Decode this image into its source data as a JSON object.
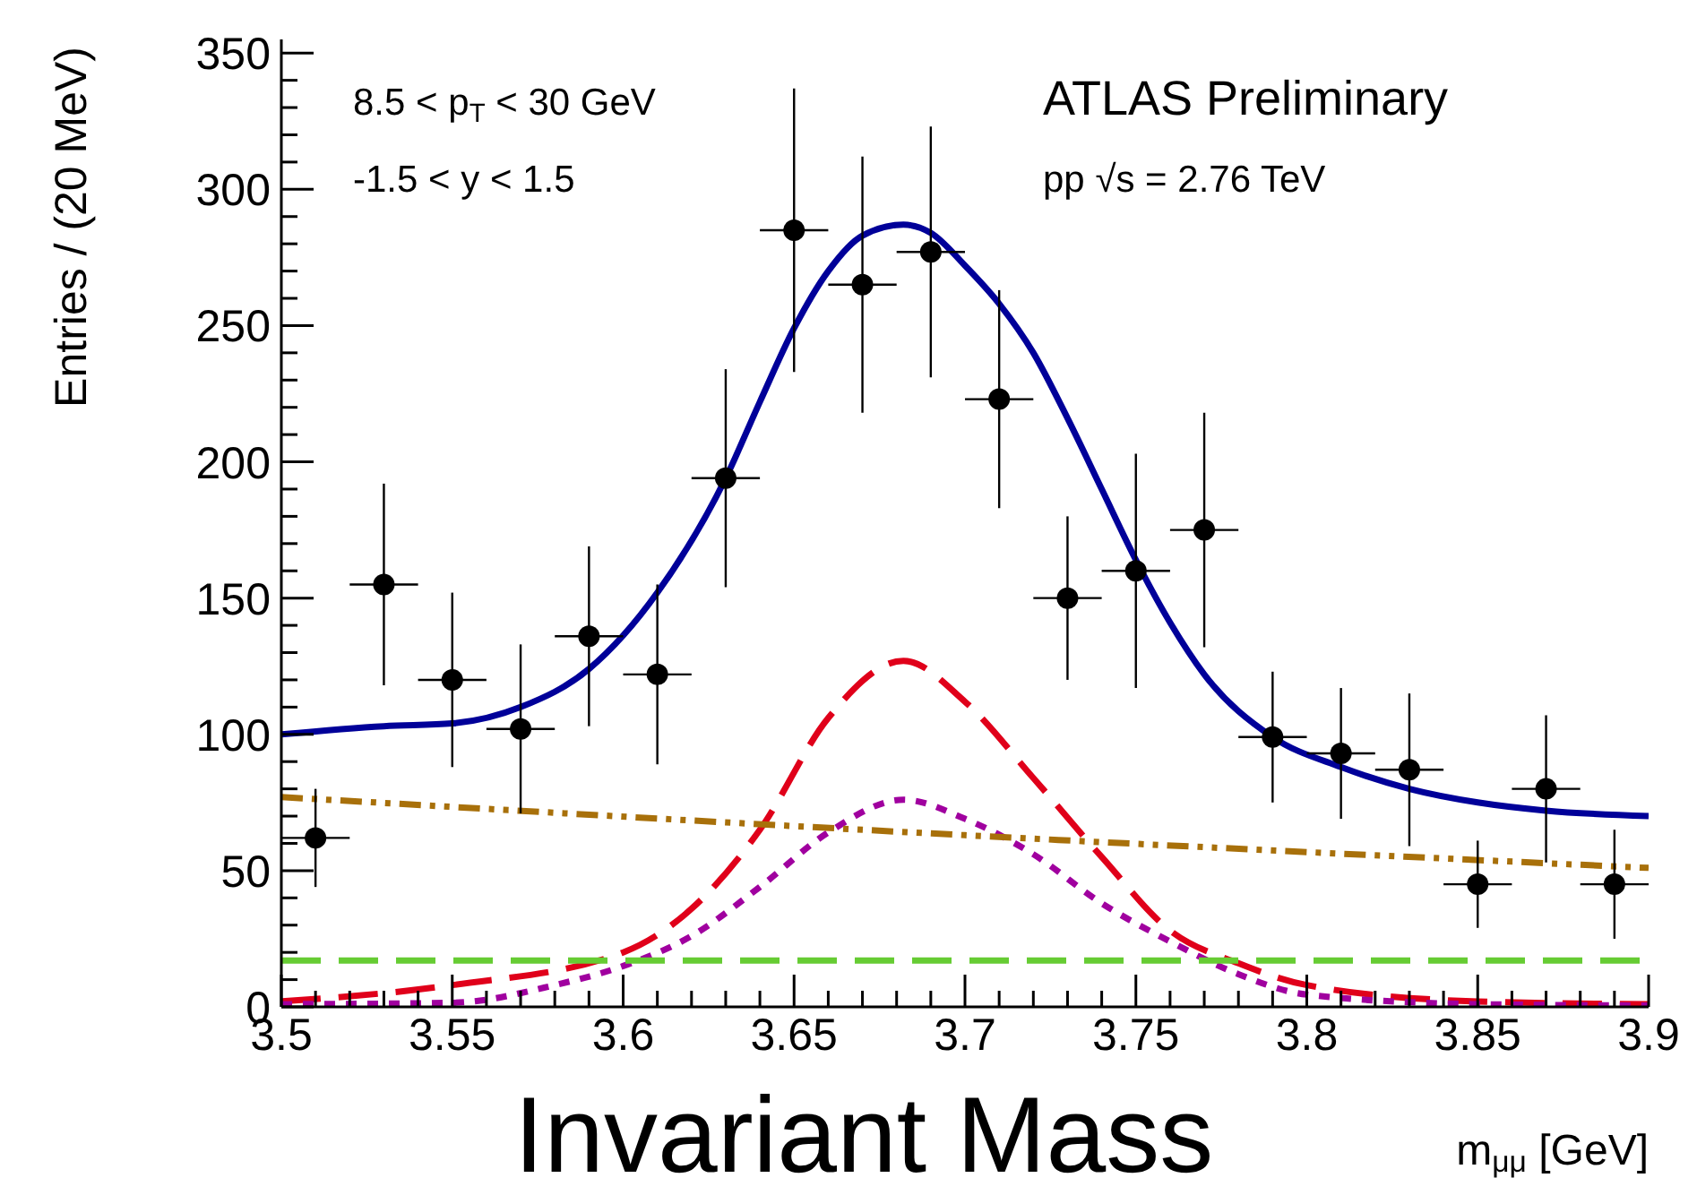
{
  "chart_data": {
    "type": "scatter",
    "ylabel": "Entries / (20 MeV)",
    "xlabel": "m$_{μμ}$ [GeV]",
    "annotations": [
      "8.5 < p$_{T}$ < 30 GeV",
      "-1.5 < y < 1.5",
      "ATLAS Preliminary",
      "pp √s = 2.76 TeV",
      "Invariant Mass"
    ],
    "xlim": [
      3.5,
      3.9
    ],
    "ylim": [
      0,
      355
    ],
    "xticks": [
      3.5,
      {
        "value": 3.51,
        "label": null
      },
      {
        "value": 3.52,
        "label": null
      },
      {
        "value": 3.53,
        "label": null
      },
      {
        "value": 3.54,
        "label": null
      },
      3.55,
      {
        "value": 3.56,
        "label": null
      },
      {
        "value": 3.57,
        "label": null
      },
      {
        "value": 3.58,
        "label": null
      },
      {
        "value": 3.59,
        "label": null
      },
      3.6,
      {
        "value": 3.61,
        "label": null
      },
      {
        "value": 3.62,
        "label": null
      },
      {
        "value": 3.63,
        "label": null
      },
      {
        "value": 3.64,
        "label": null
      },
      3.65,
      {
        "value": 3.66,
        "label": null
      },
      {
        "value": 3.67,
        "label": null
      },
      {
        "value": 3.68,
        "label": null
      },
      {
        "value": 3.69,
        "label": null
      },
      3.7,
      {
        "value": 3.71,
        "label": null
      },
      {
        "value": 3.72,
        "label": null
      },
      {
        "value": 3.73,
        "label": null
      },
      {
        "value": 3.74,
        "label": null
      },
      3.75,
      {
        "value": 3.76,
        "label": null
      },
      {
        "value": 3.77,
        "label": null
      },
      {
        "value": 3.78,
        "label": null
      },
      {
        "value": 3.79,
        "label": null
      },
      3.8,
      {
        "value": 3.81,
        "label": null
      },
      {
        "value": 3.82,
        "label": null
      },
      {
        "value": 3.83,
        "label": null
      },
      {
        "value": 3.84,
        "label": null
      },
      3.85,
      {
        "value": 3.86,
        "label": null
      },
      {
        "value": 3.87,
        "label": null
      },
      {
        "value": 3.88,
        "label": null
      },
      {
        "value": 3.89,
        "label": null
      },
      3.9
    ],
    "yticks": [
      0,
      {
        "value": 10,
        "label": null
      },
      {
        "value": 20,
        "label": null
      },
      {
        "value": 30,
        "label": null
      },
      {
        "value": 40,
        "label": null
      },
      50,
      {
        "value": 60,
        "label": null
      },
      {
        "value": 70,
        "label": null
      },
      {
        "value": 80,
        "label": null
      },
      {
        "value": 90,
        "label": null
      },
      100,
      {
        "value": 110,
        "label": null
      },
      {
        "value": 120,
        "label": null
      },
      {
        "value": 130,
        "label": null
      },
      {
        "value": 140,
        "label": null
      },
      150,
      {
        "value": 160,
        "label": null
      },
      {
        "value": 170,
        "label": null
      },
      {
        "value": 180,
        "label": null
      },
      {
        "value": 190,
        "label": null
      },
      200,
      {
        "value": 210,
        "label": null
      },
      {
        "value": 220,
        "label": null
      },
      {
        "value": 230,
        "label": null
      },
      {
        "value": 240,
        "label": null
      },
      250,
      {
        "value": 260,
        "label": null
      },
      {
        "value": 270,
        "label": null
      },
      {
        "value": 280,
        "label": null
      },
      {
        "value": 290,
        "label": null
      },
      300,
      {
        "value": 310,
        "label": null
      },
      {
        "value": 320,
        "label": null
      },
      {
        "value": 330,
        "label": null
      },
      {
        "value": 340,
        "label": null
      },
      350
    ],
    "series": [
      {
        "type": "line",
        "color": "#e0001a",
        "line_style": "dashed",
        "x": [
          3.5,
          3.55,
          3.6,
          3.62,
          3.64,
          3.66,
          3.682,
          3.7,
          3.72,
          3.74,
          3.76,
          3.78,
          3.8,
          3.85,
          3.9
        ],
        "values": [
          2,
          8,
          20,
          36,
          65,
          106,
          127,
          112,
          84,
          55,
          28,
          16,
          8,
          2,
          1
        ]
      },
      {
        "type": "line",
        "color": "#a0009f",
        "line_style": "dotted",
        "x": [
          3.5,
          3.55,
          3.58,
          3.6,
          3.62,
          3.64,
          3.66,
          3.682,
          3.7,
          3.72,
          3.74,
          3.76,
          3.78,
          3.8,
          3.85,
          3.9
        ],
        "values": [
          1,
          1.5,
          8,
          15,
          26,
          44,
          64,
          76,
          69,
          56,
          38,
          24,
          12,
          4.5,
          1,
          0.5
        ]
      },
      {
        "type": "line",
        "color": "#a8700a",
        "line_style": "dashdot",
        "x": [
          3.5,
          3.7,
          3.9
        ],
        "values": [
          77,
          63,
          51
        ]
      },
      {
        "type": "line",
        "color": "#66cc33",
        "line_style": "dashed",
        "x": [
          3.5,
          3.9
        ],
        "values": [
          17,
          17
        ]
      },
      {
        "type": "line",
        "color": "#000099",
        "line_style": "solid",
        "x": [
          3.5,
          3.53,
          3.55,
          3.57,
          3.59,
          3.61,
          3.63,
          3.64,
          3.65,
          3.66,
          3.67,
          3.682,
          3.69,
          3.7,
          3.71,
          3.72,
          3.73,
          3.74,
          3.75,
          3.76,
          3.77,
          3.79,
          3.81,
          3.83,
          3.85,
          3.87,
          3.9
        ],
        "values": [
          100,
          103,
          104,
          110,
          124,
          152,
          194,
          222,
          249,
          270,
          283,
          287,
          284,
          272,
          258,
          240,
          216,
          190,
          164,
          141,
          122,
          99,
          88,
          80,
          75,
          72,
          70
        ]
      },
      {
        "color": "#000000",
        "marker": "circle",
        "x": [
          3.51,
          3.53,
          3.55,
          3.57,
          3.59,
          3.61,
          3.63,
          3.65,
          3.67,
          3.69,
          3.71,
          3.73,
          3.75,
          3.77,
          3.79,
          3.81,
          3.83,
          3.85,
          3.87,
          3.89
        ],
        "values": [
          62,
          155,
          120,
          102,
          136,
          122,
          194,
          285,
          265,
          277,
          223,
          150,
          160,
          175,
          99,
          93,
          87,
          45,
          80,
          45
        ],
        "errors": [
          18,
          37,
          32,
          31,
          33,
          33,
          40,
          52,
          47,
          46,
          40,
          30,
          43,
          43,
          24,
          24,
          28,
          16,
          27,
          20
        ],
        "xerrors": [
          0.01,
          0.01,
          0.01,
          0.01,
          0.01,
          0.01,
          0.01,
          0.01,
          0.01,
          0.01,
          0.01,
          0.01,
          0.01,
          0.01,
          0.01,
          0.01,
          0.01,
          0.01,
          0.01,
          0.01
        ]
      }
    ]
  }
}
